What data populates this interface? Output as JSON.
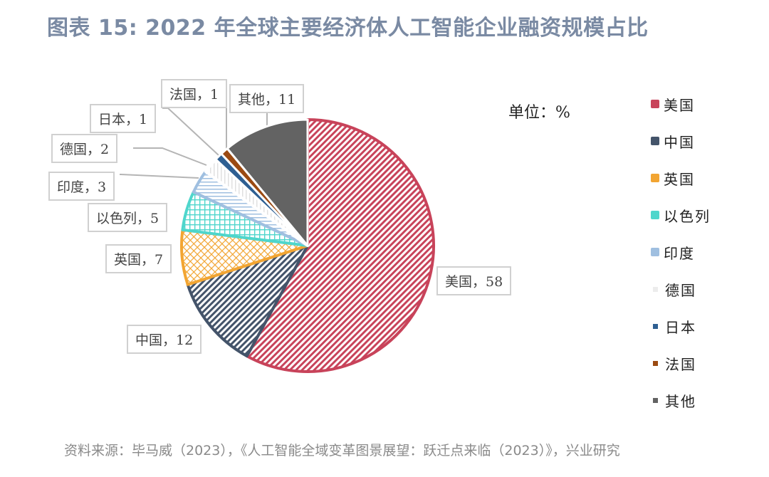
{
  "title": "图表 15: 2022 年全球主要经济体人工智能企业融资规模占比",
  "unit": "单位：%",
  "source": "资料来源：毕马威（2023），《人工智能全域变革图景展望：跃迁点来临（2023）》，兴业研究",
  "chart_data": {
    "type": "pie",
    "title": "2022 年全球主要经济体人工智能企业融资规模占比",
    "unit": "%",
    "categories": [
      "美国",
      "中国",
      "英国",
      "以色列",
      "印度",
      "德国",
      "日本",
      "法国",
      "其他"
    ],
    "values": [
      58,
      12,
      7,
      5,
      3,
      2,
      1,
      1,
      11
    ],
    "colors": [
      "#c8435a",
      "#44546a",
      "#f2a532",
      "#4fd6cc",
      "#9fbfe0",
      "#e6e6e6",
      "#2e5f92",
      "#9b4a12",
      "#636363"
    ],
    "patterns": [
      "diagonal",
      "diagonal",
      "crosshatch",
      "grid",
      "horizontal",
      "vertical",
      "solid",
      "solid",
      "solid"
    ],
    "start_angle": "12 o'clock",
    "direction": "clockwise",
    "legend_position": "right"
  },
  "labels": [
    {
      "text": "美国，58"
    },
    {
      "text": "中国，12"
    },
    {
      "text": "英国，7"
    },
    {
      "text": "以色列，5"
    },
    {
      "text": "印度，3"
    },
    {
      "text": "德国，2"
    },
    {
      "text": "日本，1"
    },
    {
      "text": "法国，1"
    },
    {
      "text": "其他，11"
    }
  ],
  "legend": [
    {
      "label": "美国",
      "color": "#c8435a"
    },
    {
      "label": "中国",
      "color": "#44546a"
    },
    {
      "label": "英国",
      "color": "#f2a532"
    },
    {
      "label": "以色列",
      "color": "#4fd6cc"
    },
    {
      "label": "印度",
      "color": "#9fbfe0"
    },
    {
      "label": "德国",
      "color": "#e8e8e8"
    },
    {
      "label": "日本",
      "color": "#2e5f92"
    },
    {
      "label": "法国",
      "color": "#9b4a12"
    },
    {
      "label": "其他",
      "color": "#636363"
    }
  ]
}
